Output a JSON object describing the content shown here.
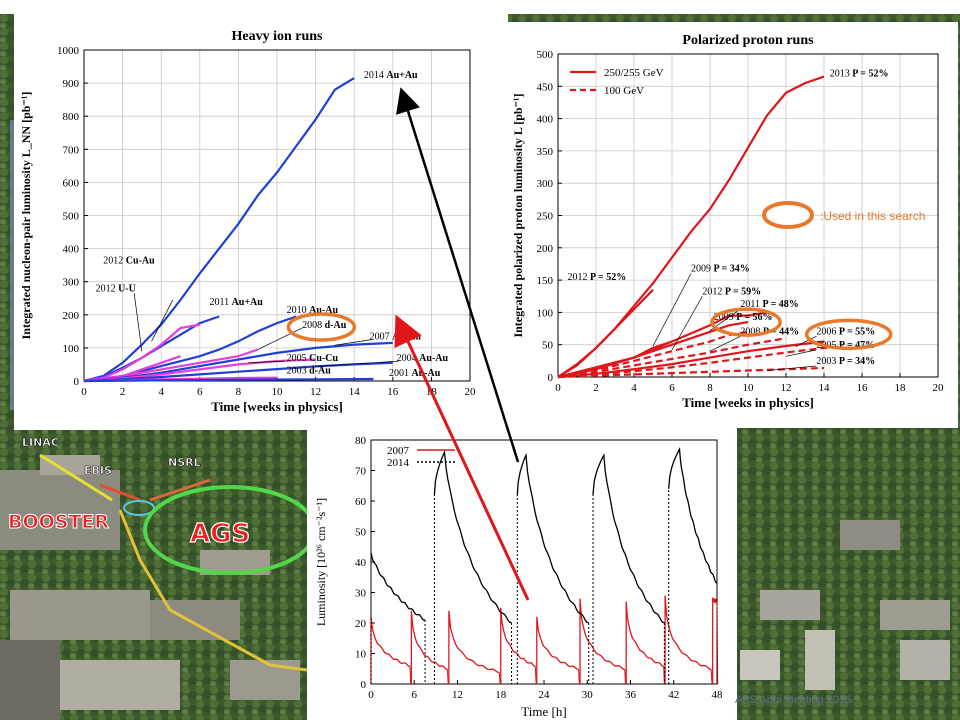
{
  "footer": "APS April Meeting 2016",
  "used_legend_text": ":Used in this search",
  "photo_labels": {
    "linac": "LINAC",
    "ebis": "EBIS",
    "nsrl": "NSRL",
    "booster": "BOOSTER",
    "ags": "AGS"
  },
  "chart_data": [
    {
      "id": "heavy",
      "type": "line",
      "title": "Heavy ion runs",
      "xlabel": "Time [weeks in physics]",
      "ylabel": "Integrated nucleon-pair luminosity L_NN [pb⁻¹]",
      "xlim": [
        0,
        20
      ],
      "ylim": [
        0,
        1000
      ],
      "xticks": [
        0,
        2,
        4,
        6,
        8,
        10,
        12,
        14,
        16,
        18,
        20
      ],
      "yticks": [
        0,
        100,
        200,
        300,
        400,
        500,
        600,
        700,
        800,
        900,
        1000
      ],
      "grid": true,
      "series": [
        {
          "name": "2014 Au+Au",
          "color": "#1f3fd8",
          "x": [
            0,
            1,
            2,
            3,
            4,
            5,
            6,
            7,
            8,
            9,
            10,
            11,
            12,
            13,
            14
          ],
          "y": [
            0,
            15,
            55,
            110,
            170,
            245,
            325,
            400,
            475,
            560,
            630,
            710,
            790,
            880,
            915
          ]
        },
        {
          "name": "2011 Au+Au",
          "color": "#1f3fd8",
          "x": [
            0,
            1,
            2,
            3,
            4,
            5,
            6,
            7
          ],
          "y": [
            0,
            12,
            40,
            70,
            105,
            140,
            175,
            195
          ]
        },
        {
          "name": "2010 Au-Au",
          "color": "#1f3fd8",
          "x": [
            0,
            2,
            4,
            6,
            7,
            8,
            9,
            10,
            11
          ],
          "y": [
            0,
            15,
            45,
            75,
            95,
            120,
            150,
            175,
            195
          ]
        },
        {
          "name": "2012 Cu-Au",
          "color": "#e83ed8",
          "x": [
            0,
            1,
            2,
            3,
            4,
            5,
            6
          ],
          "y": [
            0,
            10,
            35,
            70,
            110,
            160,
            170
          ]
        },
        {
          "name": "2012 U-U",
          "color": "#e83ed8",
          "x": [
            0,
            1,
            2,
            3,
            4,
            5
          ],
          "y": [
            0,
            5,
            15,
            35,
            55,
            75
          ]
        },
        {
          "name": "2008 d-Au",
          "color": "#e83ed8",
          "x": [
            0,
            2,
            4,
            6,
            8,
            9
          ],
          "y": [
            0,
            15,
            35,
            55,
            75,
            95
          ]
        },
        {
          "name": "2007 Au-Au",
          "color": "#1f3fd8",
          "x": [
            0,
            2,
            4,
            6,
            8,
            10,
            12,
            14,
            16
          ],
          "y": [
            0,
            10,
            25,
            45,
            65,
            85,
            100,
            110,
            115
          ]
        },
        {
          "name": "2005 Cu-Cu",
          "color": "#e83ed8",
          "x": [
            0,
            2,
            4,
            6,
            8,
            10,
            12
          ],
          "y": [
            0,
            8,
            20,
            35,
            50,
            60,
            65
          ]
        },
        {
          "name": "2004 Au-Au",
          "color": "#1f3fd8",
          "x": [
            0,
            2,
            4,
            6,
            8,
            10,
            12,
            14,
            16
          ],
          "y": [
            0,
            5,
            12,
            20,
            28,
            36,
            44,
            50,
            55
          ]
        },
        {
          "name": "2003 d-Au",
          "color": "#e83ed8",
          "x": [
            0,
            2,
            4,
            6,
            8,
            10
          ],
          "y": [
            0,
            2,
            5,
            7,
            9,
            10
          ]
        },
        {
          "name": "2001 Au-Au",
          "color": "#1f3fd8",
          "x": [
            0,
            4,
            8,
            12,
            15
          ],
          "y": [
            0,
            2,
            4,
            5,
            6
          ]
        }
      ],
      "labels": [
        {
          "year": "2014",
          "name": "Au+Au",
          "x": 14.5,
          "y": 915
        },
        {
          "year": "2011",
          "name": "Au+Au",
          "x": 6.5,
          "y": 230
        },
        {
          "year": "2010",
          "name": "Au-Au",
          "x": 10.5,
          "y": 205
        },
        {
          "year": "2012",
          "name": "Cu-Au",
          "x": 1.0,
          "y": 355
        },
        {
          "year": "2012",
          "name": "U-U",
          "x": 0.6,
          "y": 270
        },
        {
          "year": "2008",
          "name": "d-Au",
          "x": 11.3,
          "y": 160
        },
        {
          "year": "2007",
          "name": "Au-Au",
          "x": 14.8,
          "y": 125
        },
        {
          "year": "2005",
          "name": "Cu-Cu",
          "x": 10.5,
          "y": 60
        },
        {
          "year": "2004",
          "name": "Au-Au",
          "x": 16.2,
          "y": 60
        },
        {
          "year": "2003",
          "name": "d-Au",
          "x": 10.5,
          "y": 22
        },
        {
          "year": "2001",
          "name": "Au-Au",
          "x": 15.8,
          "y": 15
        }
      ],
      "highlighted": [
        "2008 d-Au"
      ]
    },
    {
      "id": "pp",
      "type": "line",
      "title": "Polarized proton runs",
      "xlabel": "Time [weeks in physics]",
      "ylabel": "Integrated polarized proton luminosity L [pb⁻¹]",
      "xlim": [
        0,
        20
      ],
      "ylim": [
        0,
        500
      ],
      "xticks": [
        0,
        2,
        4,
        6,
        8,
        10,
        12,
        14,
        16,
        18,
        20
      ],
      "yticks": [
        0,
        50,
        100,
        150,
        200,
        250,
        300,
        350,
        400,
        450,
        500
      ],
      "grid": true,
      "legend": {
        "placement": "top-left",
        "entries": [
          {
            "label": "250/255 GeV",
            "style": "solid"
          },
          {
            "label": "100 GeV",
            "style": "dashed"
          }
        ]
      },
      "series": [
        {
          "name": "2013 P = 52%",
          "style": "solid",
          "x": [
            0,
            1,
            2,
            3,
            4,
            5,
            6,
            7,
            8,
            9,
            10,
            11,
            12,
            13,
            14
          ],
          "y": [
            0,
            20,
            45,
            75,
            110,
            145,
            185,
            225,
            260,
            305,
            355,
            405,
            440,
            455,
            465
          ]
        },
        {
          "name": "2012 P = 52%",
          "style": "solid",
          "x": [
            0,
            1,
            2,
            3,
            4,
            5
          ],
          "y": [
            0,
            18,
            45,
            75,
            105,
            135
          ]
        },
        {
          "name": "2009 P = 34%",
          "style": "solid",
          "x": [
            0,
            2,
            4,
            5,
            6
          ],
          "y": [
            0,
            12,
            30,
            45,
            55
          ]
        },
        {
          "name": "2012 P = 59%",
          "style": "dashed",
          "x": [
            0,
            2,
            4,
            6,
            8,
            9,
            10
          ],
          "y": [
            0,
            10,
            25,
            40,
            55,
            65,
            70
          ]
        },
        {
          "name": "2011 P = 48%",
          "style": "solid",
          "x": [
            0,
            2,
            4,
            6,
            8,
            9,
            10,
            11
          ],
          "y": [
            0,
            12,
            30,
            55,
            80,
            95,
            95,
            100
          ]
        },
        {
          "name": "2009 P = 56%",
          "style": "solid",
          "x": [
            0,
            2,
            4,
            6,
            8,
            9,
            10
          ],
          "y": [
            0,
            15,
            30,
            50,
            70,
            80,
            85
          ]
        },
        {
          "name": "2008 P = 44%",
          "style": "dashed",
          "x": [
            0,
            2,
            4,
            6,
            8,
            10,
            12
          ],
          "y": [
            0,
            8,
            18,
            28,
            38,
            50,
            60
          ]
        },
        {
          "name": "2006 P = 55%",
          "style": "solid",
          "x": [
            0,
            2,
            4,
            6,
            8,
            10,
            12,
            14
          ],
          "y": [
            0,
            5,
            12,
            20,
            30,
            40,
            48,
            55
          ]
        },
        {
          "name": "2005 P = 47%",
          "style": "dashed",
          "x": [
            0,
            2,
            4,
            6,
            8,
            10,
            12,
            14,
            15
          ],
          "y": [
            0,
            4,
            9,
            15,
            22,
            30,
            38,
            45,
            47
          ]
        },
        {
          "name": "2003 P = 34%",
          "style": "dashed",
          "x": [
            0,
            2,
            4,
            6,
            8,
            10,
            12,
            14
          ],
          "y": [
            0,
            2,
            4,
            6,
            8,
            10,
            12,
            14
          ]
        }
      ],
      "labels": [
        {
          "year": "2013",
          "name": "P = 52%",
          "x": 14.3,
          "y": 465
        },
        {
          "year": "2012",
          "name": "P = 52%",
          "x": 0.5,
          "y": 150
        },
        {
          "year": "2009",
          "name": "P = 34%",
          "x": 7.0,
          "y": 163
        },
        {
          "year": "2012",
          "name": "P = 59%",
          "x": 7.6,
          "y": 128
        },
        {
          "year": "2011",
          "name": "P = 48%",
          "x": 9.6,
          "y": 108
        },
        {
          "year": "2009",
          "name": "P = 56%",
          "x": 8.2,
          "y": 88
        },
        {
          "year": "2008",
          "name": "P = 44%",
          "x": 9.6,
          "y": 66
        },
        {
          "year": "2006",
          "name": "P = 55%",
          "x": 13.6,
          "y": 66
        },
        {
          "year": "2005",
          "name": "P = 47%",
          "x": 13.6,
          "y": 45
        },
        {
          "year": "2003",
          "name": "P = 34%",
          "x": 13.6,
          "y": 20
        }
      ],
      "highlighted": [
        "2009 P = 56%",
        "2006 P = 55%"
      ]
    },
    {
      "id": "lumi",
      "type": "line",
      "title": "",
      "xlabel": "Time [h]",
      "ylabel": "Luminosity [10²⁶ cm⁻²s⁻¹]",
      "xlim": [
        0,
        48
      ],
      "ylim": [
        0,
        80
      ],
      "xticks": [
        0,
        6,
        12,
        18,
        24,
        30,
        36,
        42,
        48
      ],
      "yticks": [
        0,
        10,
        20,
        30,
        40,
        50,
        60,
        70,
        80
      ],
      "legend": {
        "placement": "top-left",
        "entries": [
          {
            "label": "2007",
            "color": "#e0161b",
            "style": "solid"
          },
          {
            "label": "2014",
            "color": "#000000",
            "style": "dotted"
          }
        ]
      },
      "series": [
        {
          "name": "2007",
          "color": "#e0161b",
          "stores": [
            [
              0,
              5.4,
              22,
              6
            ],
            [
              5.6,
              10.6,
              24,
              5
            ],
            [
              10.8,
              17.8,
              24,
              4
            ],
            [
              18,
              22.8,
              25,
              6
            ],
            [
              23,
              28.8,
              22,
              5
            ],
            [
              29,
              35.2,
              28,
              5
            ],
            [
              35.4,
              40.6,
              27,
              6
            ],
            [
              40.8,
              47.2,
              29,
              5
            ],
            [
              47.4,
              48,
              28,
              27
            ]
          ]
        },
        {
          "name": "2014",
          "color": "#000000",
          "stores": [
            {
              "start": 0,
              "peakT": 0,
              "end": 7.5,
              "start_y": 43,
              "peak": 43,
              "end_y": 21
            },
            {
              "start": 8.8,
              "peakT": 10.2,
              "end": 19.5,
              "start_y": 62,
              "peak": 76,
              "end_y": 20
            },
            {
              "start": 20.3,
              "peakT": 21.5,
              "end": 30.2,
              "start_y": 62,
              "peak": 75,
              "end_y": 20
            },
            {
              "start": 30.8,
              "peakT": 32.3,
              "end": 40.7,
              "start_y": 62,
              "peak": 75,
              "end_y": 20
            },
            {
              "start": 41.3,
              "peakT": 42.8,
              "end": 48,
              "start_y": 64,
              "peak": 77,
              "end_y": 33
            }
          ]
        }
      ]
    }
  ]
}
